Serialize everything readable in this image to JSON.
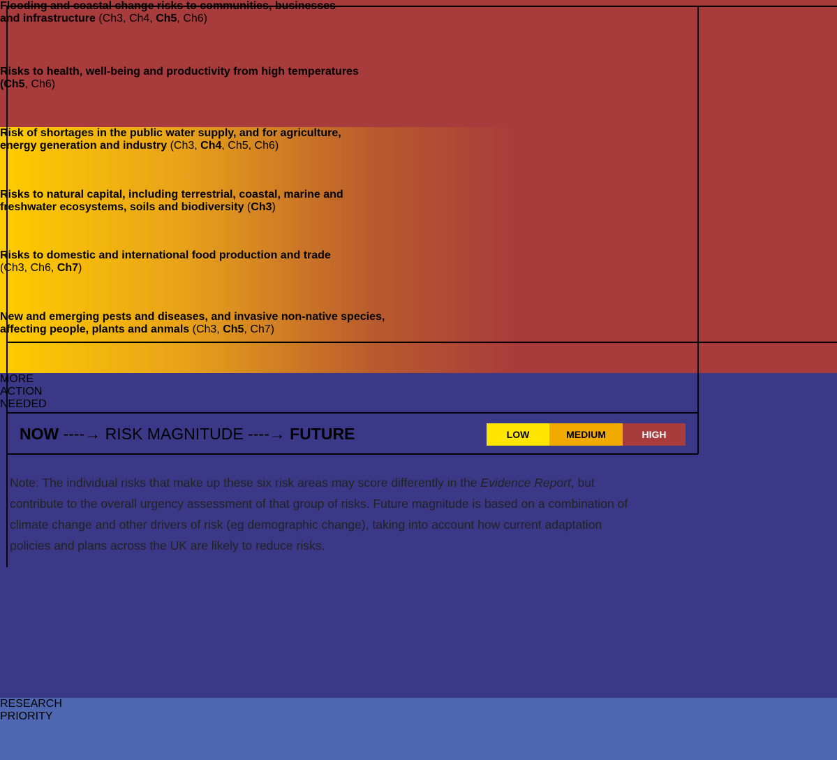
{
  "rows": [
    {
      "gradient": false,
      "lines": [
        [
          {
            "text": "Flooding and coastal change risks to communities, businesses",
            "bold": true
          }
        ],
        [
          {
            "text": "and infrastructure",
            "bold": true
          },
          {
            "text": " (Ch3, Ch4, "
          },
          {
            "text": "Ch5",
            "bold": true
          },
          {
            "text": ", Ch6)"
          }
        ]
      ]
    },
    {
      "gradient": false,
      "lines": [
        [
          {
            "text": "Risks to health, well-being and productivity from high temperatures",
            "bold": true
          }
        ],
        [
          {
            "text": "(Ch5",
            "bold": true
          },
          {
            "text": ", Ch6)"
          }
        ]
      ]
    },
    {
      "gradient": true,
      "lines": [
        [
          {
            "text": "Risk of shortages in the public water supply, and for agriculture,",
            "bold": true
          }
        ],
        [
          {
            "text": "energy generation and industry",
            "bold": true
          },
          {
            "text": " (Ch3, "
          },
          {
            "text": "Ch4",
            "bold": true
          },
          {
            "text": ", Ch5, Ch6)"
          }
        ]
      ]
    },
    {
      "gradient": true,
      "lines": [
        [
          {
            "text": "Risks to natural capital, including terrestrial, coastal, marine and",
            "bold": true
          }
        ],
        [
          {
            "text": "freshwater ecosystems, soils and biodiversity",
            "bold": true
          },
          {
            "text": " ("
          },
          {
            "text": "Ch3",
            "bold": true
          },
          {
            "text": ")"
          }
        ]
      ]
    },
    {
      "gradient": true,
      "lines": [
        [
          {
            "text": "Risks to domestic and international food production and trade",
            "bold": true
          }
        ],
        [
          {
            "text": "(Ch3, Ch6, "
          },
          {
            "text": "Ch7",
            "bold": true
          },
          {
            "text": ")"
          }
        ]
      ]
    },
    {
      "gradient": true,
      "lines": [
        [
          {
            "text": "New and emerging  pests and diseases, and invasive non-native species,",
            "bold": true
          }
        ],
        [
          {
            "text": "affecting people, plants and anmals",
            "bold": true
          },
          {
            "text": " (Ch3, "
          },
          {
            "text": "Ch5",
            "bold": true
          },
          {
            "text": ", Ch7)"
          }
        ]
      ]
    }
  ],
  "actions": [
    {
      "color": "#3b3888",
      "lines": [
        "MORE",
        "ACTION",
        "NEEDED"
      ]
    },
    {
      "color": "#4f67b0",
      "lines": [
        "RESEARCH",
        "PRIORITY"
      ]
    }
  ],
  "legend": {
    "segments": [
      {
        "text": "NOW",
        "bold": true
      },
      {
        "text": " ----→ RISK MAGNITUDE ----→ "
      },
      {
        "text": "FUTURE",
        "bold": true
      }
    ],
    "keys": [
      {
        "label": "LOW",
        "color": "#ffe600",
        "text_color": "#000"
      },
      {
        "label": "MEDIUM",
        "color": "#f2a900",
        "text_color": "#000"
      },
      {
        "label": "HIGH",
        "color": "#a83b3b",
        "text_color": "#fff"
      }
    ]
  },
  "note": {
    "lines": [
      [
        {
          "text": "Note: The individual risks that make up these six risk areas may score differently in the "
        },
        {
          "text": "Evidence Report",
          "italic": true
        },
        {
          "text": ", but"
        }
      ],
      [
        {
          "text": "contribute to the overall urgency assessment of that group of risks. Future magnitude is based on a combination of"
        }
      ],
      [
        {
          "text": "climate change and other drivers of risk (eg demographic change), taking into account how current adaptation"
        }
      ],
      [
        {
          "text": "policies and plans across the UK are likely to reduce risks."
        }
      ]
    ]
  }
}
